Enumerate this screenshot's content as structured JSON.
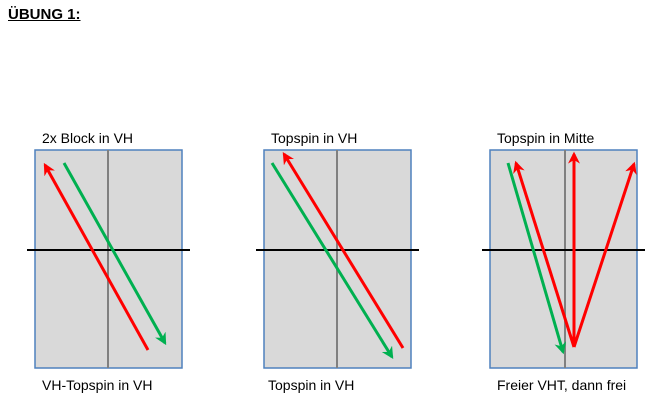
{
  "title": "ÜBUNG 1:",
  "colors": {
    "table": "#d9d9d9",
    "border": "#4f81bd",
    "midline": "#808080",
    "net": "#000000",
    "red": "#ff0000",
    "green": "#00b050"
  },
  "drills": [
    {
      "top_label": "2x Block in VH",
      "bottom_label": "VH-Topspin in VH"
    },
    {
      "top_label": "Topspin in VH",
      "bottom_label": "Topspin in VH"
    },
    {
      "top_label": "Topspin in Mitte",
      "bottom_label": "Freier VHT, dann frei"
    }
  ]
}
